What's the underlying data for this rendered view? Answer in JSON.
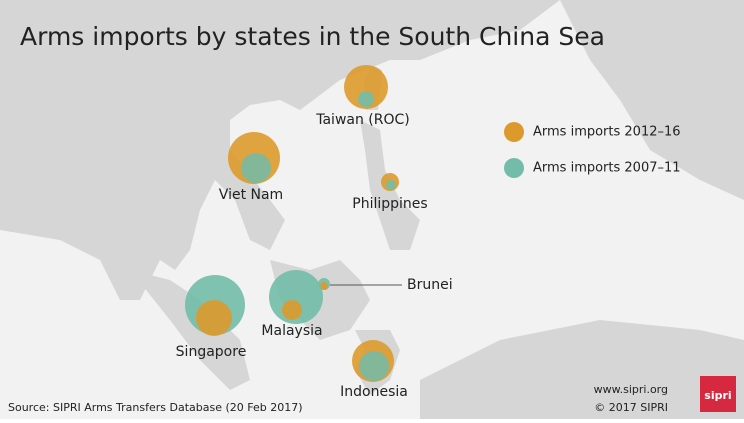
{
  "title": "Arms imports by states in the South China Sea",
  "legend": {
    "items": [
      "Arms imports 2012–16",
      "Arms imports 2007–11"
    ]
  },
  "places": [
    "Taiwan (ROC)",
    "Viet Nam",
    "Philippines",
    "Brunei",
    "Malaysia",
    "Singapore",
    "Indonesia"
  ],
  "footer": {
    "source": "Source: SIPRI Arms Transfers Database (20 Feb 2017)",
    "website": "www.sipri.org",
    "copyright": "© 2017 SIPRI",
    "logo": "sipri"
  }
}
